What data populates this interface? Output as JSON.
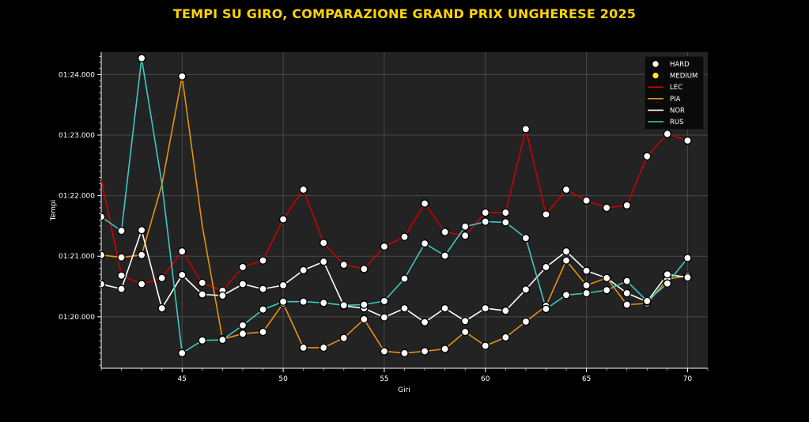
{
  "title": "TEMPI SU GIRO, COMPARAZIONE GRAND PRIX UNGHERESE 2025",
  "chart_data": {
    "type": "line",
    "title": "TEMPI SU GIRO, COMPARAZIONE GRAND PRIX UNGHERESE 2025",
    "xlabel": "Giri",
    "ylabel": "Tempi",
    "xlim": [
      41,
      71
    ],
    "ylim": [
      79.15,
      84.37
    ],
    "x_ticks": [
      45,
      50,
      55,
      60,
      65,
      70
    ],
    "x_tick_labels": [
      "45",
      "50",
      "55",
      "60",
      "65",
      "70"
    ],
    "y_ticks": [
      80,
      81,
      82,
      83,
      84
    ],
    "y_tick_labels": [
      "01:20.000",
      "01:21.000",
      "01:22.000",
      "01:23.000",
      "01:24.000"
    ],
    "grid": true,
    "legend_position": "top-right",
    "compound_legend": [
      {
        "name": "HARD",
        "color": "#ffffff"
      },
      {
        "name": "MEDIUM",
        "color": "#FFE81A"
      }
    ],
    "series": [
      {
        "name": "LEC",
        "color": "#CC0000",
        "x": [
          41,
          42,
          43,
          44,
          45,
          46,
          47,
          48,
          49,
          50,
          51,
          52,
          53,
          54,
          55,
          56,
          57,
          58,
          59,
          60,
          61,
          62,
          63,
          64,
          65,
          66,
          67,
          68,
          69,
          70
        ],
        "values": [
          82.27,
          80.68,
          80.54,
          80.64,
          81.08,
          80.56,
          80.43,
          80.82,
          80.93,
          81.61,
          82.1,
          81.22,
          80.86,
          80.79,
          81.16,
          81.32,
          81.87,
          81.4,
          81.34,
          81.72,
          81.72,
          83.1,
          81.69,
          82.1,
          81.92,
          81.8,
          81.84,
          82.65,
          83.02,
          82.91
        ],
        "markers_from": 42,
        "marker_compound": "HARD"
      },
      {
        "name": "PIA",
        "color": "#E8920C",
        "x": [
          41,
          42,
          43,
          44,
          45,
          46,
          47,
          48,
          49,
          50,
          51,
          52,
          53,
          54,
          55,
          56,
          57,
          58,
          59,
          60,
          61,
          62,
          63,
          64,
          65,
          66,
          67,
          68,
          69,
          70
        ],
        "values": [
          81.02,
          80.98,
          81.02,
          82.18,
          83.97,
          81.5,
          79.63,
          79.72,
          79.75,
          80.22,
          79.49,
          79.49,
          79.65,
          79.96,
          79.43,
          79.4,
          79.43,
          79.47,
          79.75,
          79.52,
          79.66,
          79.92,
          80.18,
          80.93,
          80.52,
          80.64,
          80.2,
          80.22,
          80.62,
          80.68
        ],
        "markers_from": 41,
        "no_marker": [
          44,
          46
        ],
        "marker_compound": "HARD"
      },
      {
        "name": "NOR",
        "color": "#ffffff",
        "x": [
          41,
          42,
          43,
          44,
          45,
          46,
          47,
          48,
          49,
          50,
          51,
          52,
          53,
          54,
          55,
          56,
          57,
          58,
          59,
          60,
          61,
          62,
          63,
          64,
          65,
          66,
          67,
          68,
          69,
          70
        ],
        "values": [
          80.54,
          80.46,
          81.43,
          80.14,
          80.69,
          80.37,
          80.35,
          80.54,
          80.46,
          80.52,
          80.77,
          80.91,
          80.18,
          80.14,
          79.99,
          80.14,
          79.91,
          80.14,
          79.93,
          80.14,
          80.1,
          80.45,
          80.82,
          81.08,
          80.76,
          80.64,
          80.39,
          80.25,
          80.7,
          80.65
        ],
        "markers_from": 41,
        "marker_compound": "HARD"
      },
      {
        "name": "RUS",
        "color": "#3FC9C0",
        "x": [
          41,
          42,
          43,
          44,
          45,
          46,
          47,
          48,
          49,
          50,
          51,
          52,
          53,
          54,
          55,
          56,
          57,
          58,
          59,
          60,
          61,
          62,
          63,
          64,
          65,
          66,
          67,
          68,
          69,
          70
        ],
        "values": [
          81.65,
          81.42,
          84.27,
          82.2,
          79.4,
          79.61,
          79.62,
          79.86,
          80.12,
          80.25,
          80.25,
          80.23,
          80.19,
          80.2,
          80.26,
          80.63,
          81.21,
          81.01,
          81.49,
          81.57,
          81.56,
          81.3,
          80.13,
          80.36,
          80.39,
          80.44,
          80.59,
          80.26,
          80.55,
          80.97
        ],
        "markers_from": 41,
        "no_marker": [
          44
        ],
        "marker_compound": "HARD"
      }
    ]
  }
}
